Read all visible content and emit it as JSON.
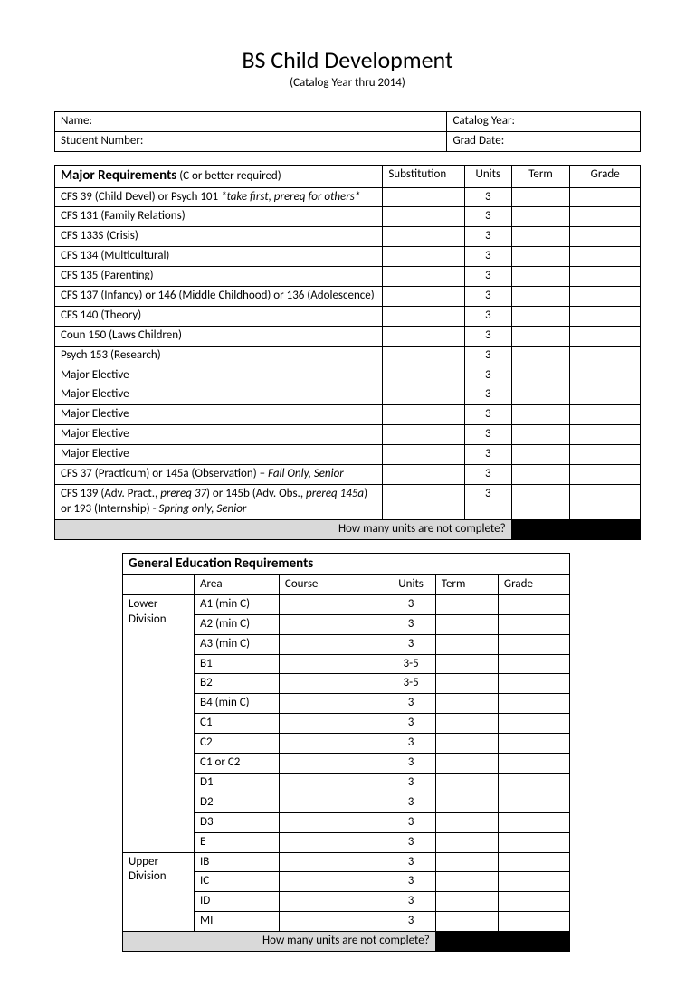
{
  "title": "BS Child Development",
  "subtitle": "(Catalog Year thru 2014)",
  "info": {
    "name_label": "Name:",
    "catalog_label": "Catalog Year:",
    "student_label": "Student Number:",
    "grad_label": "Grad Date:"
  },
  "major": {
    "header": "Major Requirements",
    "header_note": "  (C or better required)",
    "cols": {
      "sub": "Substitution",
      "units": "Units",
      "term": "Term",
      "grade": "Grade"
    },
    "rows": [
      {
        "label": "CFS 39 (Child Devel) or Psych 101 ",
        "italic": "*take first, prereq for others*",
        "units": "3"
      },
      {
        "label": "CFS 131 (Family Relations)",
        "units": "3"
      },
      {
        "label": "CFS 133S (Crisis)",
        "units": "3"
      },
      {
        "label": "CFS 134 (Multicultural)",
        "units": "3"
      },
      {
        "label": "CFS 135 (Parenting)",
        "units": "3"
      },
      {
        "label": "CFS 137 (Infancy) or 146 (Middle Childhood)  or 136 (Adolescence)",
        "units": "3"
      },
      {
        "label": "CFS 140 (Theory)",
        "units": "3"
      },
      {
        "label": "Coun 150 (Laws Children)",
        "units": "3"
      },
      {
        "label": "Psych 153 (Research)",
        "units": "3"
      },
      {
        "label": "Major Elective",
        "units": "3"
      },
      {
        "label": "Major Elective",
        "units": "3"
      },
      {
        "label": "Major Elective",
        "units": "3"
      },
      {
        "label": "Major Elective",
        "units": "3"
      },
      {
        "label": "Major Elective",
        "units": "3"
      },
      {
        "label": "CFS 37 (Practicum) or 145a (Observation) – ",
        "italic": "Fall Only, Senior",
        "units": "3"
      }
    ],
    "multirow": {
      "l1a": "CFS 139 (Adv. Pract., ",
      "l1b": "prereq 37",
      "l1c": ") or 145b (Adv. Obs., ",
      "l1d": "prereq 145a",
      "l1e": ")",
      "l2a": "or 193 (Internship)  - ",
      "l2b": "Spring only, Senior",
      "units": "3"
    },
    "footer": "How many units are not complete?"
  },
  "ge": {
    "title": "General Education Requirements",
    "cols": {
      "area": "Area",
      "course": "Course",
      "units": "Units",
      "term": "Term",
      "grade": "Grade"
    },
    "lower_label": "Lower Division",
    "upper_label": "Upper Division",
    "lower": [
      {
        "area": "A1 (min C)",
        "units": "3"
      },
      {
        "area": "A2 (min C)",
        "units": "3"
      },
      {
        "area": "A3 (min C)",
        "units": "3"
      },
      {
        "area": "B1",
        "units": "3-5"
      },
      {
        "area": "B2",
        "units": "3-5"
      },
      {
        "area": "B4 (min C)",
        "units": "3"
      },
      {
        "area": "C1",
        "units": "3"
      },
      {
        "area": "C2",
        "units": "3"
      },
      {
        "area": "C1 or C2",
        "units": "3"
      },
      {
        "area": "D1",
        "units": "3"
      },
      {
        "area": "D2",
        "units": "3"
      },
      {
        "area": "D3",
        "units": "3"
      },
      {
        "area": "E",
        "units": "3"
      }
    ],
    "upper": [
      {
        "area": "IB",
        "units": "3"
      },
      {
        "area": "IC",
        "units": "3"
      },
      {
        "area": "ID",
        "units": "3"
      },
      {
        "area": "MI",
        "units": "3"
      }
    ],
    "footer": "How many units are not complete?"
  }
}
